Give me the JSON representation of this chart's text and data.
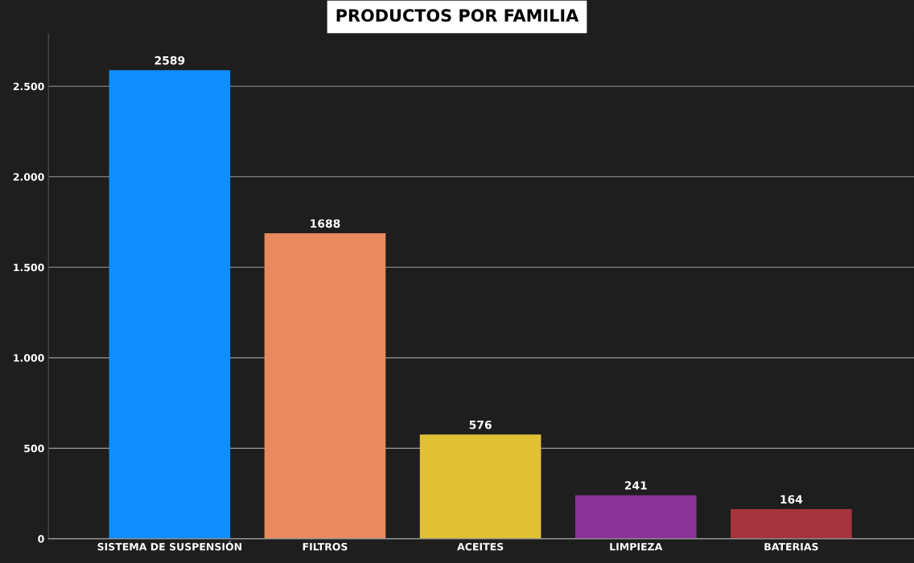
{
  "chart_data": {
    "type": "bar",
    "title": "PRODUCTOS POR FAMILIA",
    "categories": [
      "SISTEMA DE SUSPENSIÓN",
      "FILTROS",
      "ACEITES",
      "LIMPIEZA",
      "BATERIAS"
    ],
    "values": [
      2589,
      1688,
      576,
      241,
      164
    ],
    "colors": [
      "#118dff",
      "#e8895f",
      "#e0c035",
      "#8a3397",
      "#a4343e"
    ],
    "ylim": [
      0,
      2790
    ],
    "yticks": [
      0,
      500,
      {
        "value": 1000,
        "label": "1.000"
      },
      {
        "value": 1500,
        "label": "1.500"
      },
      {
        "value": 2000,
        "label": "2.000"
      },
      {
        "value": 2500,
        "label": "2.500"
      }
    ],
    "grid": "y",
    "data_labels": true
  }
}
